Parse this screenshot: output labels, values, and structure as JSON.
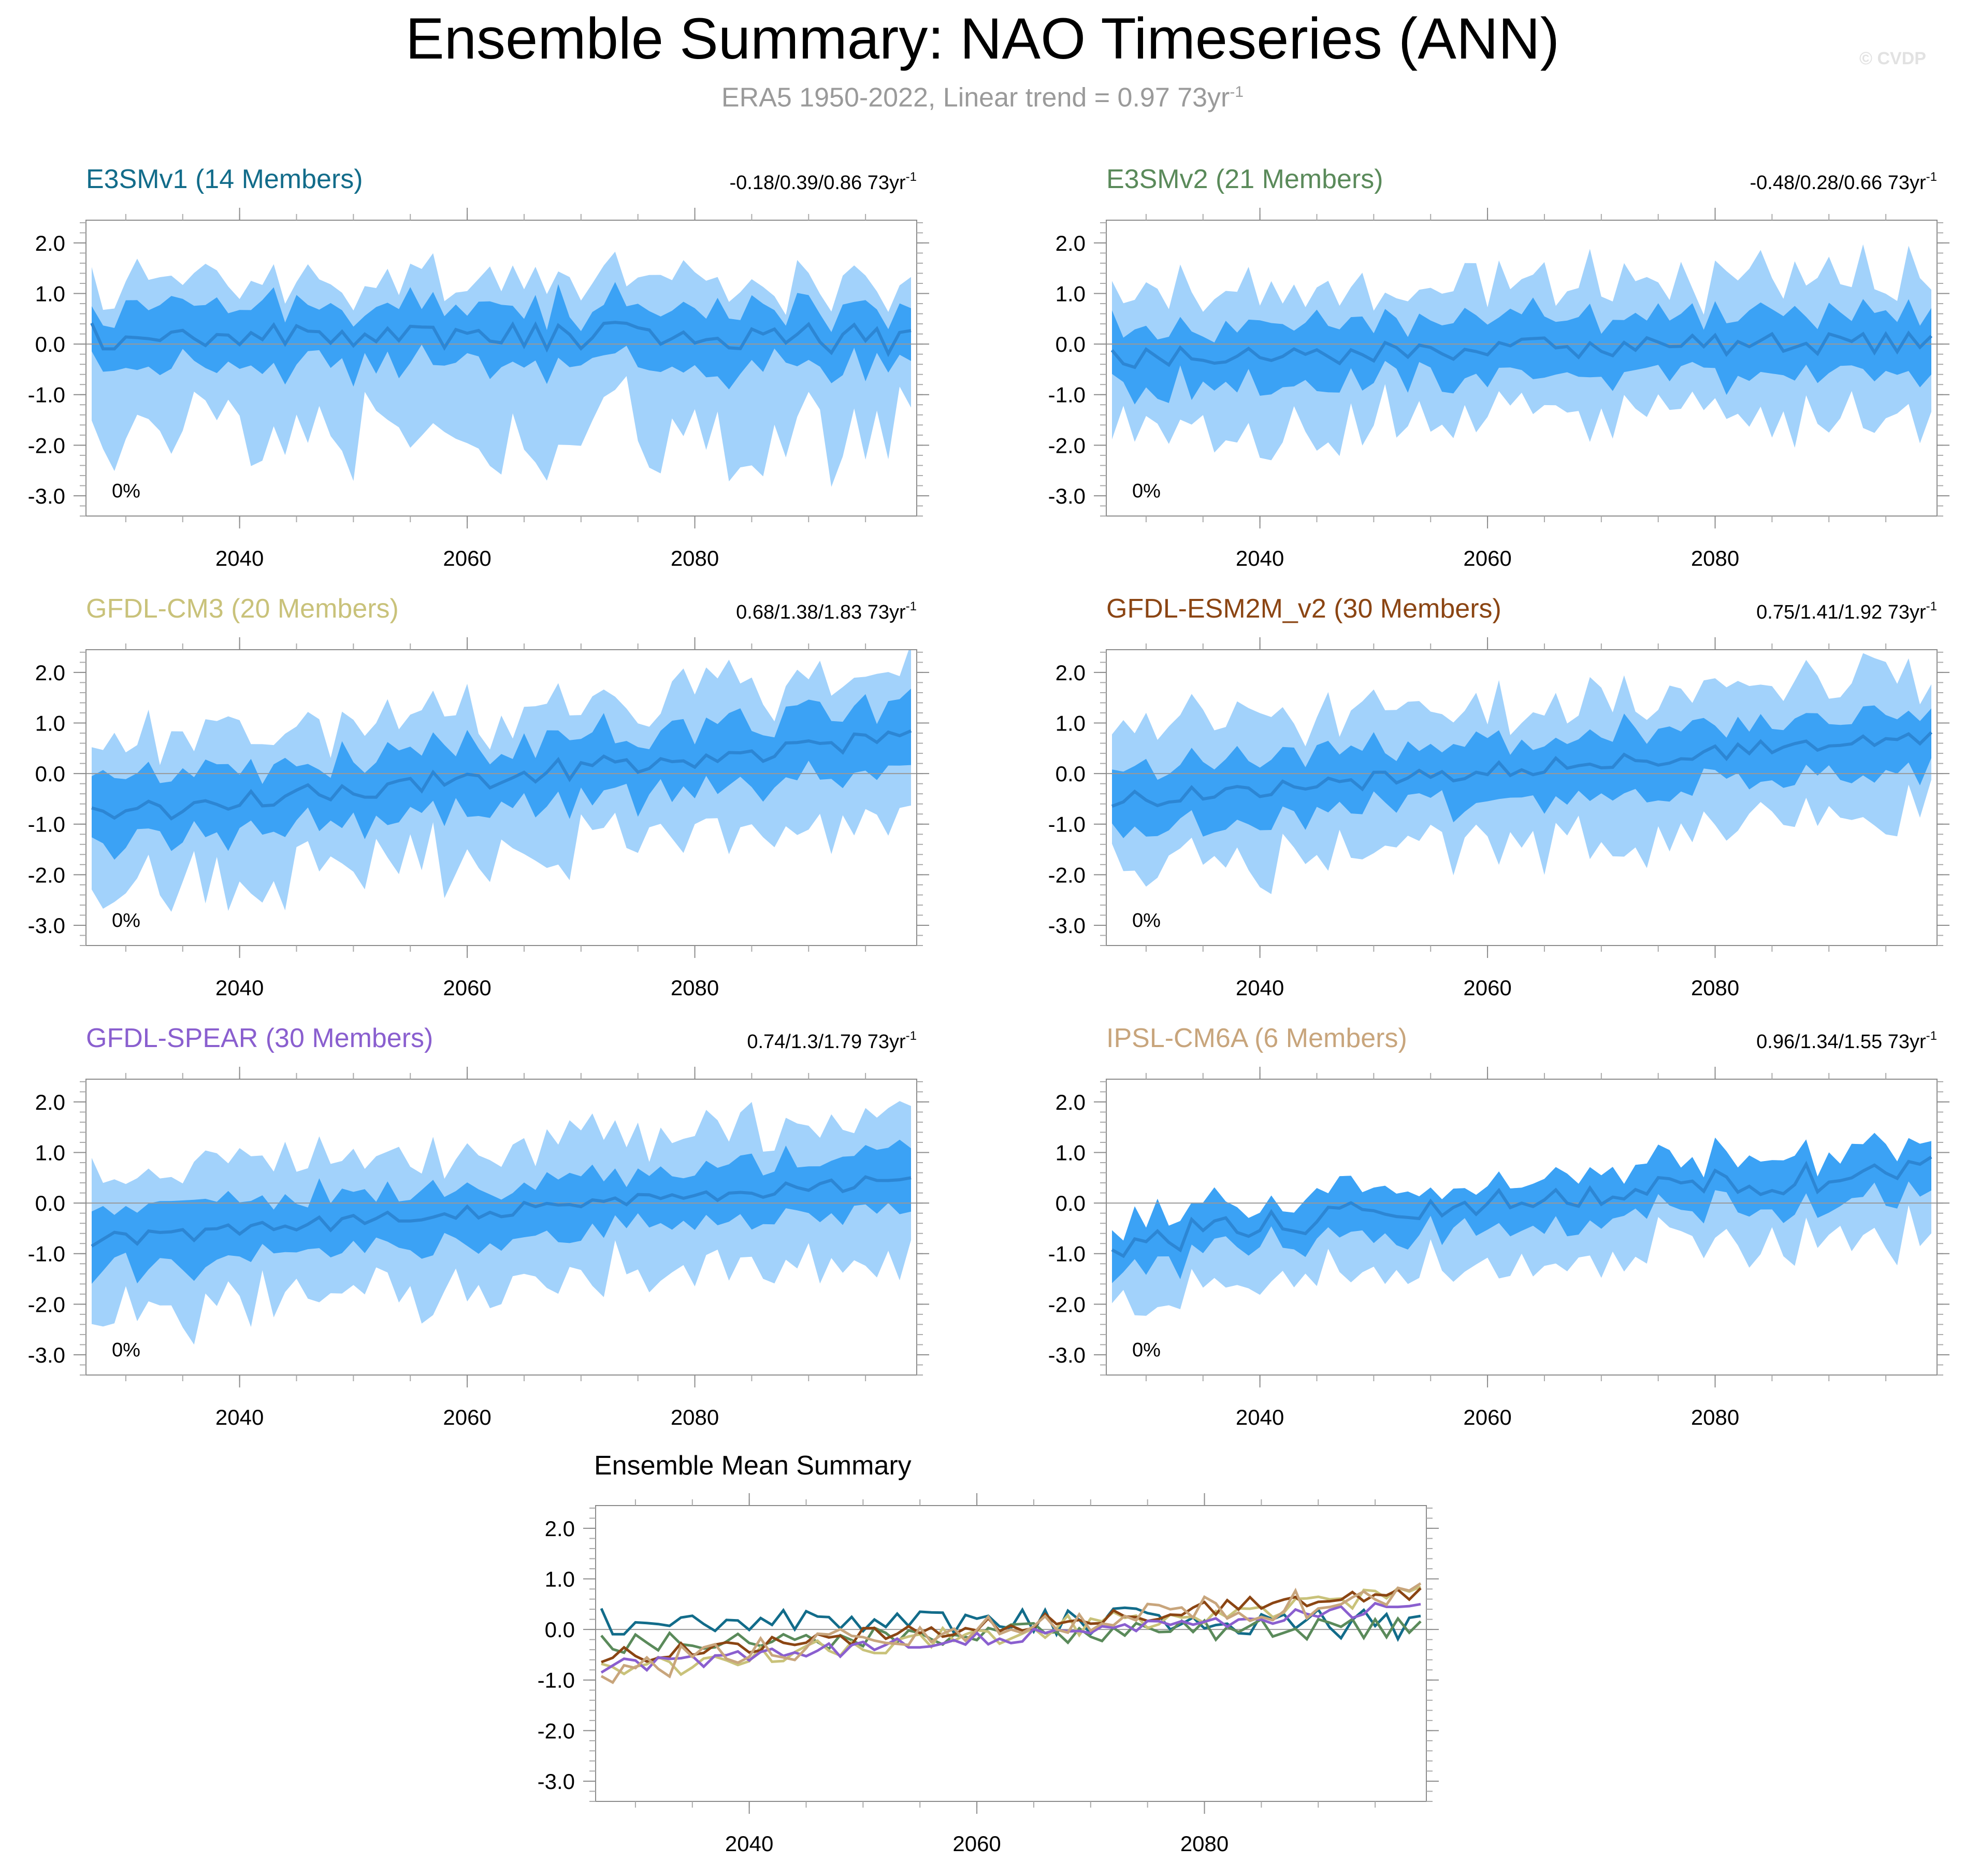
{
  "title": "Ensemble Summary: NAO Timeseries (ANN)",
  "subtitle": "ERA5 1950-2022, Linear trend = 0.97 73yr",
  "subtitle_exponent": "-1",
  "watermark": "© CVDP",
  "colors": {
    "outer_band": "#a2d2fb",
    "inner_band": "#3ba2f5",
    "mean_line": "#2c86d4",
    "zero_line": "#999999"
  },
  "axes": {
    "ylim": [
      -3.4,
      2.45
    ],
    "yticks": [
      2.0,
      1.0,
      0.0,
      -1.0,
      -2.0,
      -3.0
    ],
    "ytick_labels": [
      "2.0",
      "1.0",
      "0.0",
      "-1.0",
      "-2.0",
      "-3.0"
    ],
    "xlim": [
      2026.5,
      2099.5
    ],
    "xticks": [
      2040,
      2060,
      2080
    ],
    "xtick_labels": [
      "2040",
      "2060",
      "2080"
    ]
  },
  "chart_data": {
    "type": "line",
    "panels": [
      {
        "name": "E3SMv1",
        "label": "E3SMv1 (14 Members)",
        "color": "#126c8a",
        "trend_label": "-0.18/0.39/0.86 73yr",
        "exponent": "-1",
        "percent_label": "0%",
        "mean_start": 0.2,
        "mean_end": 0.1,
        "amp": 0.3,
        "inner_half": 0.55,
        "outer_low": 1.7,
        "outer_high": 0.7,
        "seed": 11
      },
      {
        "name": "E3SMv2",
        "label": "E3SMv2 (21 Members)",
        "color": "#5a8a5a",
        "trend_label": "-0.48/0.28/0.66 73yr",
        "exponent": "-1",
        "percent_label": "0%",
        "mean_start": -0.25,
        "mean_end": 0.05,
        "amp": 0.22,
        "inner_half": 0.55,
        "outer_low": 1.1,
        "outer_high": 0.95,
        "seed": 23
      },
      {
        "name": "GFDL-CM3",
        "label": "GFDL-CM3 (20 Members)",
        "color": "#c9c27a",
        "trend_label": "0.68/1.38/1.83 73yr",
        "exponent": "-1",
        "percent_label": "0%",
        "mean_start": -0.85,
        "mean_end": 0.75,
        "amp": 0.22,
        "inner_half": 0.6,
        "outer_low": 1.2,
        "outer_high": 0.9,
        "seed": 37
      },
      {
        "name": "GFDL-ESM2M_v2",
        "label": "GFDL-ESM2M_v2 (30 Members)",
        "color": "#8b4513",
        "trend_label": "0.75/1.41/1.92 73yr",
        "exponent": "-1",
        "percent_label": "0%",
        "mean_start": -0.55,
        "mean_end": 0.75,
        "amp": 0.16,
        "inner_half": 0.55,
        "outer_low": 1.05,
        "outer_high": 0.9,
        "seed": 41
      },
      {
        "name": "GFDL-SPEAR",
        "label": "GFDL-SPEAR (30 Members)",
        "color": "#8a5fcf",
        "trend_label": "0.74/1.3/1.79 73yr",
        "exponent": "-1",
        "percent_label": "0%",
        "mean_start": -0.75,
        "mean_end": 0.45,
        "amp": 0.14,
        "inner_half": 0.55,
        "outer_low": 1.05,
        "outer_high": 0.9,
        "seed": 53
      },
      {
        "name": "IPSL-CM6A",
        "label": "IPSL-CM6A (6 Members)",
        "color": "#c8a57c",
        "trend_label": "0.96/1.34/1.55 73yr",
        "exponent": "-1",
        "percent_label": "0%",
        "mean_start": -0.75,
        "mean_end": 0.75,
        "amp": 0.32,
        "inner_half": 0.45,
        "outer_low": 0.9,
        "outer_high": 0.0,
        "seed": 67
      }
    ],
    "summary": {
      "title": "Ensemble Mean Summary",
      "type": "line"
    }
  }
}
